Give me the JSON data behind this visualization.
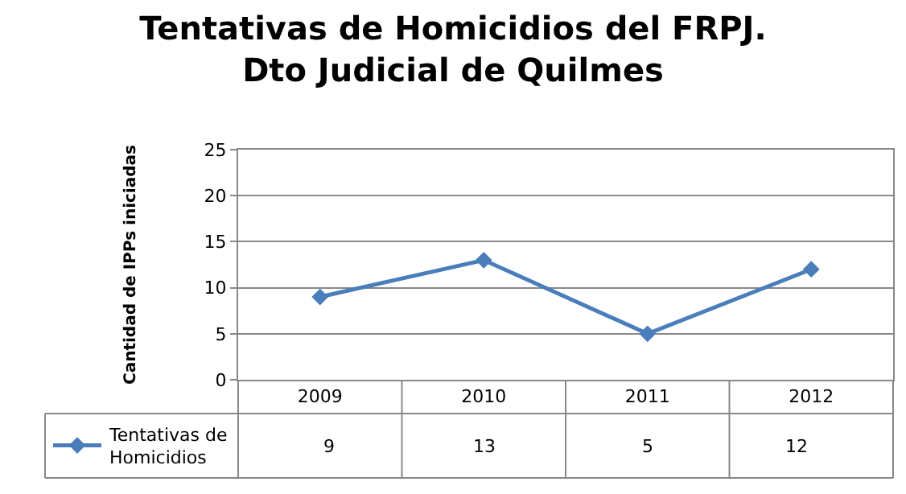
{
  "chart_data": {
    "type": "line",
    "title": "Tentativas de Homicidios del FRPJ. Dto Judicial de Quilmes",
    "ylabel": "Cantidad de IPPs iniciadas",
    "categories": [
      "2009",
      "2010",
      "2011",
      "2012"
    ],
    "series": [
      {
        "name": "Tentativas de Homicidios",
        "color": "#4a7ebb",
        "values": [
          9,
          13,
          5,
          12
        ]
      }
    ],
    "ylim": [
      0,
      25
    ],
    "yticks": [
      0,
      5,
      10,
      15,
      20,
      25
    ],
    "grid": "y",
    "legend": "bottom left",
    "marker": "diamond",
    "line_style": "solid",
    "data_labels": true
  }
}
